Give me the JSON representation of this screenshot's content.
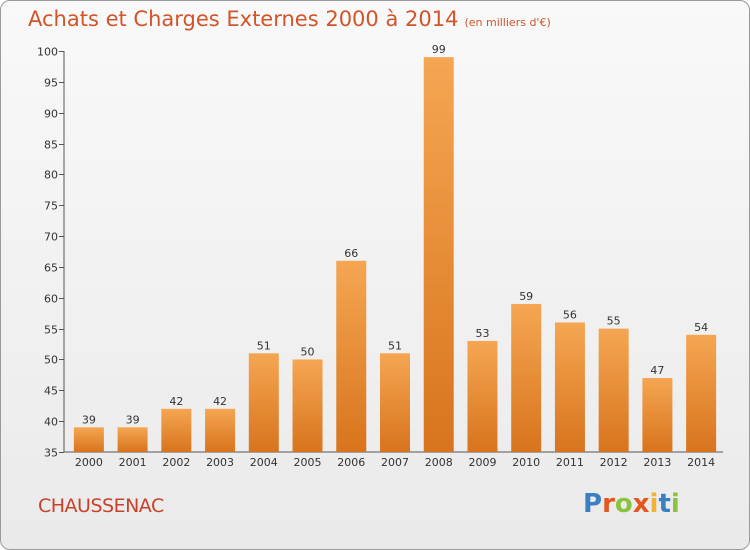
{
  "header": {
    "title": "Achats et Charges Externes 2000 à 2014",
    "unit": "(en milliers d'€)"
  },
  "footer": {
    "town": "CHAUSSENAC"
  },
  "logo": {
    "letters": [
      "P",
      "r",
      "o",
      "x",
      "i",
      "t",
      "i"
    ],
    "colors": [
      "#3a7fc1",
      "#e5561e",
      "#8ac43f",
      "#e5561e",
      "#f2b233",
      "#3a7fc1",
      "#8ac43f"
    ]
  },
  "chart_data": {
    "type": "bar",
    "title": "Achats et Charges Externes 2000 à 2014",
    "categories": [
      "2000",
      "2001",
      "2002",
      "2003",
      "2004",
      "2005",
      "2006",
      "2007",
      "2008",
      "2009",
      "2010",
      "2011",
      "2012",
      "2013",
      "2014"
    ],
    "values": [
      39,
      39,
      42,
      42,
      51,
      50,
      66,
      51,
      99,
      53,
      59,
      56,
      55,
      47,
      54
    ],
    "ylim": [
      35,
      100
    ],
    "yticks": [
      35,
      40,
      45,
      50,
      55,
      60,
      65,
      70,
      75,
      80,
      85,
      90,
      95,
      100
    ],
    "grid": false,
    "bar_color": "#e8812f"
  }
}
